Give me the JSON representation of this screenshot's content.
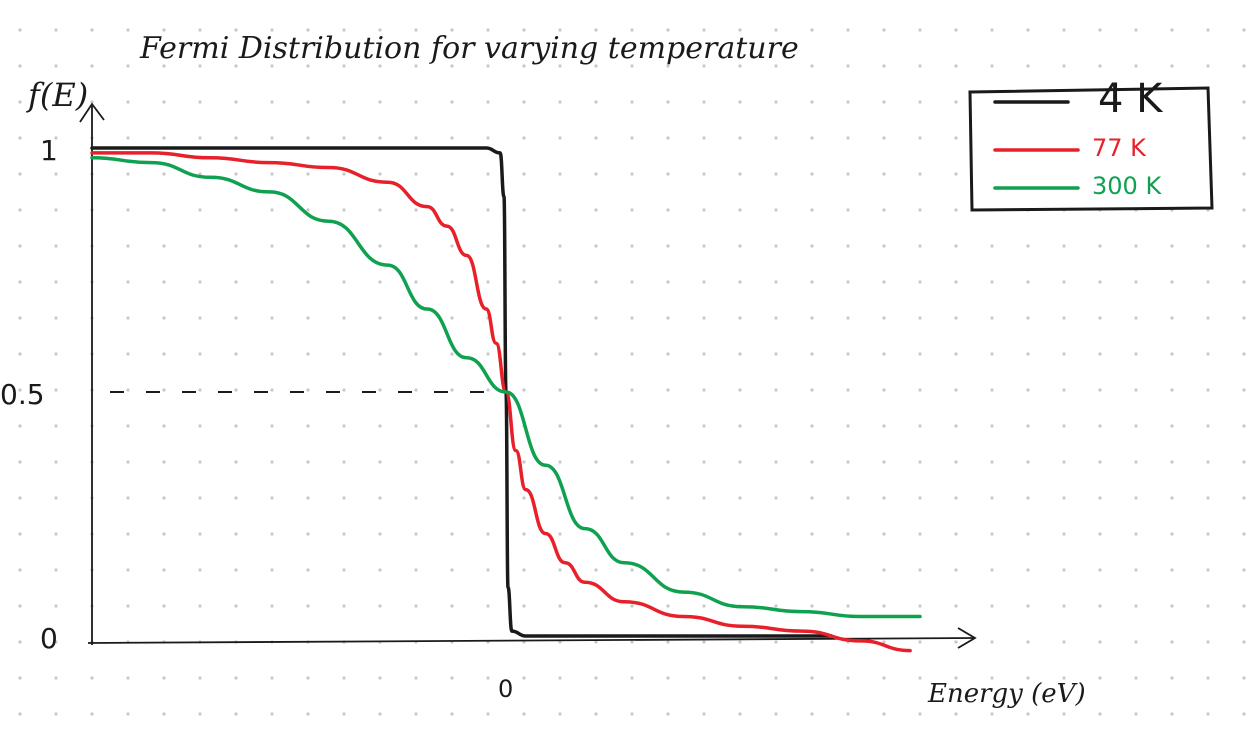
{
  "chart_data": {
    "type": "line",
    "title": "Fermi Distribution for varying temperature",
    "xlabel": "Energy (eV)",
    "ylabel": "f(E)",
    "xlim": [
      -0.21,
      0.21
    ],
    "ylim": [
      0,
      1
    ],
    "x_ticks": [
      {
        "value": 0,
        "label": "0"
      }
    ],
    "y_ticks": [
      {
        "value": 0,
        "label": "0"
      },
      {
        "value": 0.5,
        "label": "0.5"
      },
      {
        "value": 1,
        "label": "1"
      }
    ],
    "grid": "dotted",
    "legend_position": "top-right",
    "reference_line": {
      "y": 0.5,
      "style": "dashed"
    },
    "series": [
      {
        "name": "4 K",
        "color": "#1a1a1a",
        "x": [
          -0.21,
          -0.15,
          -0.1,
          -0.05,
          -0.01,
          -0.003,
          -0.001,
          0.0,
          0.001,
          0.003,
          0.01,
          0.05,
          0.1,
          0.165
        ],
        "y": [
          1.0,
          1.0,
          1.0,
          1.0,
          1.0,
          0.99,
          0.9,
          0.5,
          0.1,
          0.01,
          0.0,
          0.0,
          0.0,
          0.0
        ]
      },
      {
        "name": "77 K",
        "color": "#e8202a",
        "x": [
          -0.21,
          -0.18,
          -0.15,
          -0.12,
          -0.09,
          -0.06,
          -0.04,
          -0.03,
          -0.02,
          -0.01,
          -0.005,
          0.0,
          0.005,
          0.01,
          0.02,
          0.03,
          0.04,
          0.06,
          0.09,
          0.12,
          0.15,
          0.18,
          0.205
        ],
        "y": [
          0.99,
          0.99,
          0.98,
          0.97,
          0.96,
          0.93,
          0.88,
          0.84,
          0.78,
          0.67,
          0.6,
          0.5,
          0.38,
          0.3,
          0.21,
          0.15,
          0.11,
          0.07,
          0.04,
          0.02,
          0.01,
          -0.01,
          -0.03
        ]
      },
      {
        "name": "300 K",
        "color": "#0fa14f",
        "x": [
          -0.21,
          -0.18,
          -0.15,
          -0.12,
          -0.09,
          -0.06,
          -0.04,
          -0.02,
          0.0,
          0.02,
          0.04,
          0.06,
          0.09,
          0.12,
          0.15,
          0.18,
          0.21
        ],
        "y": [
          0.98,
          0.97,
          0.94,
          0.91,
          0.85,
          0.76,
          0.67,
          0.57,
          0.5,
          0.35,
          0.22,
          0.15,
          0.09,
          0.06,
          0.05,
          0.04,
          0.04
        ]
      }
    ]
  }
}
